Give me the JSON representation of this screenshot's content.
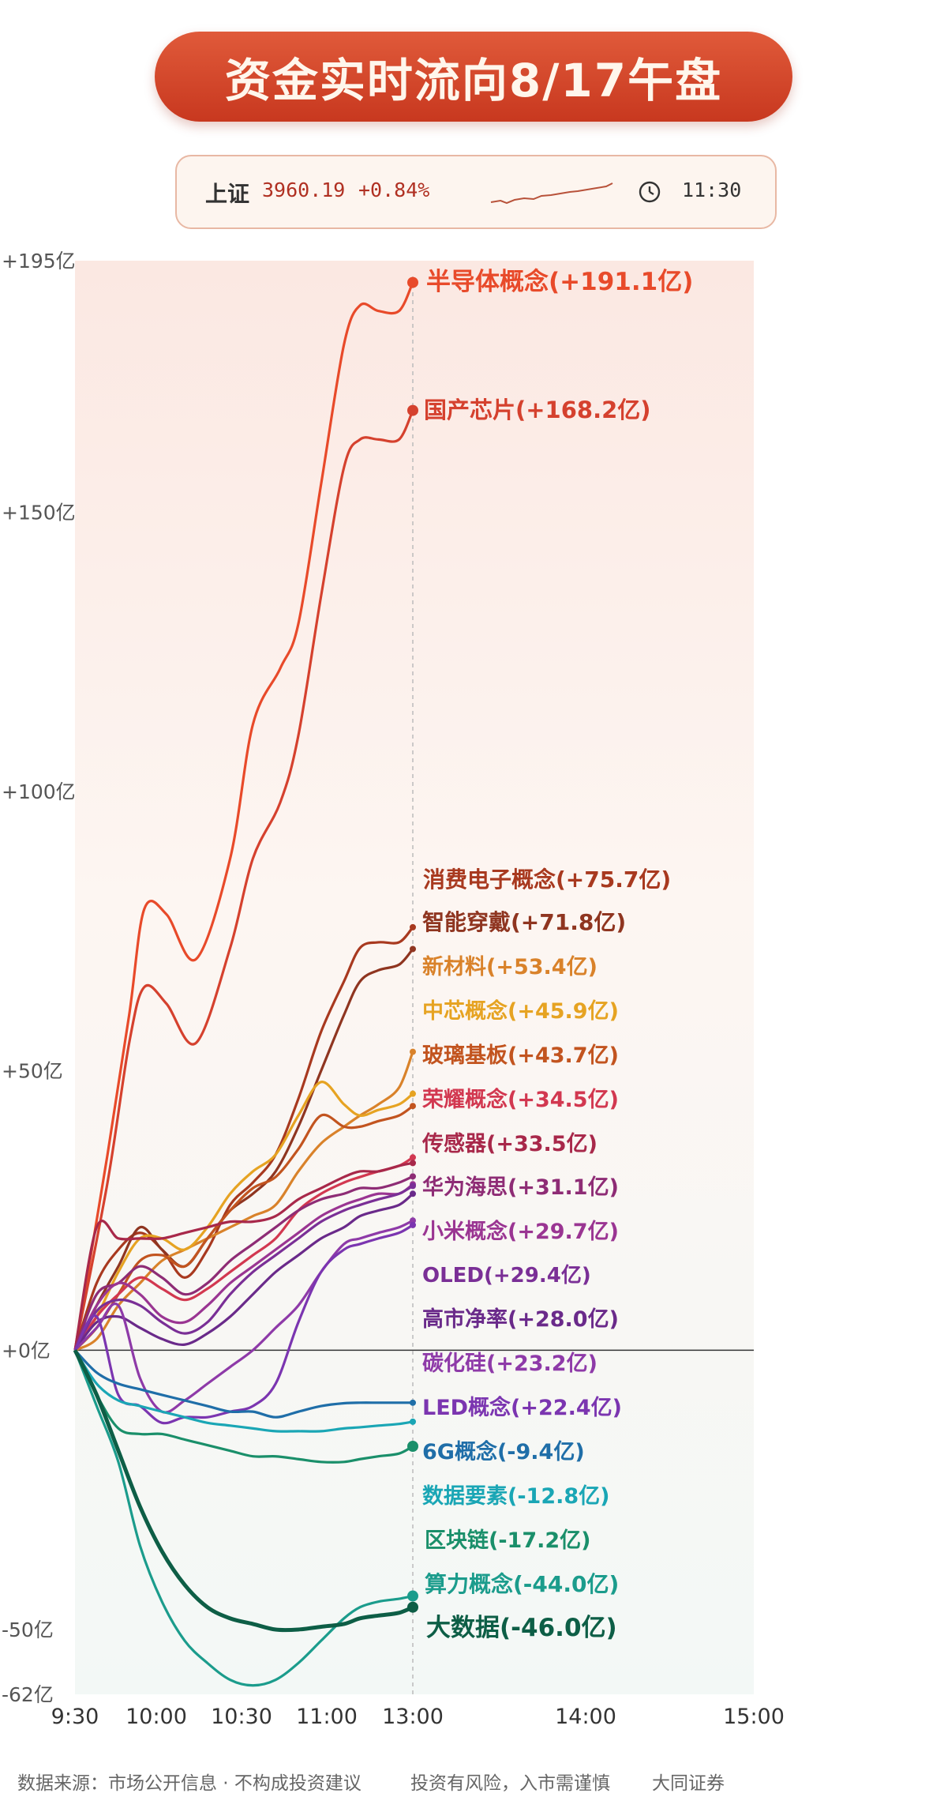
{
  "header": {
    "title": "资金实时流向8/17午盘"
  },
  "ticker": {
    "index_name": "上证",
    "value": "3960.19",
    "change": "+0.84%",
    "time": "11:30",
    "icons": [
      "sparkline-icon",
      "clock-icon"
    ]
  },
  "chart_data": {
    "type": "line",
    "x_ticks": [
      "9:30",
      "10:00",
      "10:30",
      "11:00",
      "13:00",
      "14:00",
      "15:00"
    ],
    "y_ticks": [
      "+195亿",
      "+150亿",
      "+100亿",
      "+50亿",
      "+0亿",
      "-50亿",
      "-62亿"
    ],
    "ylim": [
      -62,
      195
    ],
    "unit": "亿",
    "grid": false,
    "series": [
      {
        "name": "半导体概念",
        "label": "半导体概念(+191.1亿)",
        "value": 191.1,
        "color": "#e84a2a",
        "x": [
          0,
          0.15,
          0.25,
          0.32,
          0.42,
          0.55,
          0.7,
          0.8,
          0.92,
          1.0,
          1.1,
          1.2,
          1.27,
          1.35,
          1.44,
          1.5
        ],
        "y": [
          0,
          35,
          60,
          79,
          78,
          70,
          88,
          112,
          122,
          130,
          155,
          180,
          187,
          186,
          186,
          191.1
        ]
      },
      {
        "name": "国产芯片",
        "label": "国产芯片(+168.2亿)",
        "value": 168.2,
        "color": "#d5412e",
        "x": [
          0,
          0.15,
          0.25,
          0.32,
          0.42,
          0.55,
          0.7,
          0.8,
          0.92,
          1.0,
          1.1,
          1.2,
          1.27,
          1.35,
          1.44,
          1.5
        ],
        "y": [
          0,
          30,
          55,
          65,
          62,
          55,
          72,
          88,
          98,
          110,
          135,
          158,
          163,
          163,
          163,
          168.2
        ]
      },
      {
        "name": "消费电子概念",
        "label": "消费电子概念(+75.7亿)",
        "value": 75.7,
        "color": "#a8391f",
        "x": [
          0,
          0.1,
          0.2,
          0.3,
          0.4,
          0.5,
          0.6,
          0.7,
          0.8,
          0.9,
          1.0,
          1.1,
          1.2,
          1.27,
          1.35,
          1.44,
          1.5
        ],
        "y": [
          0,
          12,
          18,
          21,
          18,
          13,
          18,
          26,
          30,
          35,
          45,
          57,
          66,
          72,
          73,
          73,
          75.7
        ]
      },
      {
        "name": "智能穿戴",
        "label": "智能穿戴(+71.8亿)",
        "value": 71.8,
        "color": "#8f3520",
        "x": [
          0,
          0.1,
          0.2,
          0.3,
          0.4,
          0.5,
          0.6,
          0.7,
          0.8,
          0.9,
          1.0,
          1.1,
          1.2,
          1.27,
          1.35,
          1.44,
          1.5
        ],
        "y": [
          0,
          8,
          15,
          22,
          18,
          15,
          20,
          25,
          28,
          32,
          40,
          50,
          60,
          66,
          68,
          69,
          71.8
        ]
      },
      {
        "name": "新材料",
        "label": "新材料(+53.4亿)",
        "value": 53.4,
        "color": "#d9822a",
        "x": [
          0,
          0.1,
          0.2,
          0.3,
          0.4,
          0.5,
          0.6,
          0.7,
          0.8,
          0.9,
          1.0,
          1.1,
          1.2,
          1.27,
          1.35,
          1.44,
          1.5
        ],
        "y": [
          0,
          2,
          8,
          12,
          16,
          18,
          20,
          22,
          24,
          26,
          32,
          37,
          40,
          42,
          44,
          47,
          53.4
        ]
      },
      {
        "name": "中芯概念",
        "label": "中芯概念(+45.9亿)",
        "value": 45.9,
        "color": "#e6a322",
        "x": [
          0,
          0.1,
          0.2,
          0.3,
          0.4,
          0.5,
          0.6,
          0.7,
          0.8,
          0.9,
          1.0,
          1.1,
          1.2,
          1.27,
          1.35,
          1.44,
          1.5
        ],
        "y": [
          0,
          6,
          14,
          20,
          20,
          18,
          22,
          28,
          32,
          35,
          42,
          48,
          44,
          42,
          43,
          44,
          45.9
        ]
      },
      {
        "name": "玻璃基板",
        "label": "玻璃基板(+43.7亿)",
        "value": 43.7,
        "color": "#c2541f",
        "x": [
          0,
          0.1,
          0.2,
          0.3,
          0.4,
          0.5,
          0.6,
          0.7,
          0.8,
          0.9,
          1.0,
          1.1,
          1.2,
          1.27,
          1.35,
          1.44,
          1.5
        ],
        "y": [
          0,
          4,
          10,
          16,
          17,
          15,
          20,
          25,
          29,
          31,
          36,
          42,
          40,
          40,
          41,
          42,
          43.7
        ]
      },
      {
        "name": "荣耀概念",
        "label": "荣耀概念(+34.5亿)",
        "value": 34.5,
        "color": "#d23850",
        "x": [
          0,
          0.1,
          0.2,
          0.3,
          0.4,
          0.5,
          0.6,
          0.7,
          0.8,
          0.9,
          1.0,
          1.1,
          1.2,
          1.27,
          1.35,
          1.44,
          1.5
        ],
        "y": [
          0,
          6,
          10,
          13,
          11,
          9,
          11,
          14,
          17,
          20,
          25,
          28,
          30,
          31,
          32,
          33,
          34.5
        ]
      },
      {
        "name": "传感器",
        "label": "传感器(+33.5亿)",
        "value": 33.5,
        "color": "#a8284a",
        "x": [
          0,
          0.1,
          0.2,
          0.3,
          0.4,
          0.5,
          0.6,
          0.7,
          0.8,
          0.9,
          1.0,
          1.1,
          1.2,
          1.27,
          1.35,
          1.44,
          1.5
        ],
        "y": [
          0,
          22,
          20,
          20,
          20,
          21,
          22,
          23,
          23,
          24,
          27,
          29,
          31,
          32,
          32,
          33,
          33.5
        ]
      },
      {
        "name": "华为海思",
        "label": "华为海思(+31.1亿)",
        "value": 31.1,
        "color": "#8e2c75",
        "x": [
          0,
          0.1,
          0.2,
          0.3,
          0.4,
          0.5,
          0.6,
          0.7,
          0.8,
          0.9,
          1.0,
          1.1,
          1.2,
          1.27,
          1.35,
          1.44,
          1.5
        ],
        "y": [
          0,
          10,
          12,
          15,
          13,
          10,
          12,
          16,
          19,
          22,
          25,
          27,
          28,
          29,
          29,
          30,
          31.1
        ]
      },
      {
        "name": "小米概念",
        "label": "小米概念(+29.7亿)",
        "value": 29.7,
        "color": "#9a3592",
        "x": [
          0,
          0.1,
          0.2,
          0.3,
          0.4,
          0.5,
          0.6,
          0.7,
          0.8,
          0.9,
          1.0,
          1.1,
          1.2,
          1.27,
          1.35,
          1.44,
          1.5
        ],
        "y": [
          0,
          8,
          12,
          10,
          6,
          5,
          8,
          12,
          15,
          18,
          21,
          24,
          26,
          27,
          28,
          28,
          29.7
        ]
      },
      {
        "name": "OLED",
        "label": "OLED(+29.4亿)",
        "value": 29.4,
        "color": "#7a2f96",
        "x": [
          0,
          0.1,
          0.2,
          0.3,
          0.4,
          0.5,
          0.6,
          0.7,
          0.8,
          0.9,
          1.0,
          1.1,
          1.2,
          1.27,
          1.35,
          1.44,
          1.5
        ],
        "y": [
          0,
          7,
          9,
          8,
          5,
          3,
          5,
          10,
          14,
          17,
          20,
          23,
          25,
          26,
          27,
          28,
          29.4
        ]
      },
      {
        "name": "高市净率",
        "label": "高市净率(+28.0亿)",
        "value": 28.0,
        "color": "#6a2a8a",
        "x": [
          0,
          0.1,
          0.2,
          0.3,
          0.4,
          0.5,
          0.6,
          0.7,
          0.8,
          0.9,
          1.0,
          1.1,
          1.2,
          1.27,
          1.35,
          1.44,
          1.5
        ],
        "y": [
          0,
          5,
          6,
          4,
          2,
          1,
          3,
          6,
          10,
          14,
          17,
          20,
          22,
          24,
          25,
          26,
          28.0
        ]
      },
      {
        "name": "碳化硅",
        "label": "碳化硅(+23.2亿)",
        "value": 23.2,
        "color": "#8e3aa8",
        "x": [
          0,
          0.1,
          0.2,
          0.3,
          0.4,
          0.5,
          0.6,
          0.7,
          0.8,
          0.9,
          1.0,
          1.1,
          1.2,
          1.27,
          1.35,
          1.44,
          1.5
        ],
        "y": [
          0,
          4,
          8,
          -5,
          -11,
          -9,
          -6,
          -3,
          0,
          4,
          8,
          14,
          19,
          20,
          21,
          22,
          23.2
        ]
      },
      {
        "name": "LED概念",
        "label": "LED概念(+22.4亿)",
        "value": 22.4,
        "color": "#7b35b0",
        "x": [
          0,
          0.1,
          0.2,
          0.3,
          0.4,
          0.5,
          0.6,
          0.7,
          0.8,
          0.9,
          1.0,
          1.1,
          1.2,
          1.27,
          1.35,
          1.44,
          1.5
        ],
        "y": [
          0,
          6,
          -8,
          -10,
          -13,
          -12,
          -12,
          -11,
          -10,
          -6,
          5,
          14,
          18,
          19,
          20,
          21,
          22.4
        ]
      },
      {
        "name": "6G概念",
        "label": "6G概念(-9.4亿)",
        "value": -9.4,
        "color": "#1f6ea8",
        "x": [
          0,
          0.1,
          0.2,
          0.3,
          0.4,
          0.5,
          0.6,
          0.7,
          0.8,
          0.9,
          1.0,
          1.1,
          1.2,
          1.27,
          1.35,
          1.44,
          1.5
        ],
        "y": [
          0,
          -4,
          -6,
          -7,
          -8,
          -9,
          -10,
          -11,
          -11,
          -12,
          -11,
          -10,
          -9.5,
          -9.4,
          -9.4,
          -9.4,
          -9.4
        ]
      },
      {
        "name": "数据要素",
        "label": "数据要素(-12.8亿)",
        "value": -12.8,
        "color": "#1aa6b5",
        "x": [
          0,
          0.1,
          0.2,
          0.3,
          0.4,
          0.5,
          0.6,
          0.7,
          0.8,
          0.9,
          1.0,
          1.1,
          1.2,
          1.27,
          1.35,
          1.44,
          1.5
        ],
        "y": [
          0,
          -6,
          -9,
          -10,
          -11,
          -12,
          -13,
          -13.5,
          -14,
          -14.5,
          -14.5,
          -14.5,
          -14,
          -13.8,
          -13.5,
          -13.2,
          -12.8
        ]
      },
      {
        "name": "区块链",
        "label": "区块链(-17.2亿)",
        "value": -17.2,
        "color": "#1a8f6a",
        "x": [
          0,
          0.1,
          0.2,
          0.3,
          0.4,
          0.5,
          0.6,
          0.7,
          0.8,
          0.9,
          1.0,
          1.1,
          1.2,
          1.27,
          1.35,
          1.44,
          1.5
        ],
        "y": [
          0,
          -8,
          -14,
          -15,
          -15,
          -16,
          -17,
          -18,
          -19,
          -19,
          -19.5,
          -20,
          -20,
          -19.5,
          -19,
          -18.5,
          -17.2
        ]
      },
      {
        "name": "算力概念",
        "label": "算力概念(-44.0亿)",
        "value": -44.0,
        "color": "#1b9c8c",
        "x": [
          0,
          0.1,
          0.2,
          0.3,
          0.4,
          0.5,
          0.6,
          0.7,
          0.8,
          0.9,
          1.0,
          1.1,
          1.2,
          1.27,
          1.35,
          1.44,
          1.5
        ],
        "y": [
          0,
          -10,
          -20,
          -35,
          -45,
          -52,
          -56,
          -59,
          -60,
          -59,
          -56,
          -52,
          -48,
          -46,
          -45,
          -44.5,
          -44.0
        ]
      },
      {
        "name": "大数据",
        "label": "大数据(-46.0亿)",
        "value": -46.0,
        "color": "#0d5e46",
        "x": [
          0,
          0.1,
          0.2,
          0.3,
          0.4,
          0.5,
          0.6,
          0.7,
          0.8,
          0.9,
          1.0,
          1.1,
          1.2,
          1.27,
          1.35,
          1.44,
          1.5
        ],
        "y": [
          0,
          -8,
          -18,
          -28,
          -36,
          -42,
          -46,
          -48,
          -49,
          -50,
          -50,
          -49.5,
          -49,
          -48,
          -47.5,
          -47,
          -46.0
        ]
      }
    ]
  },
  "footer": {
    "source": "数据来源：市场公开信息 · 不构成投资建议",
    "risk": "投资有风险，入市需谨慎",
    "brand": "大同证券"
  }
}
